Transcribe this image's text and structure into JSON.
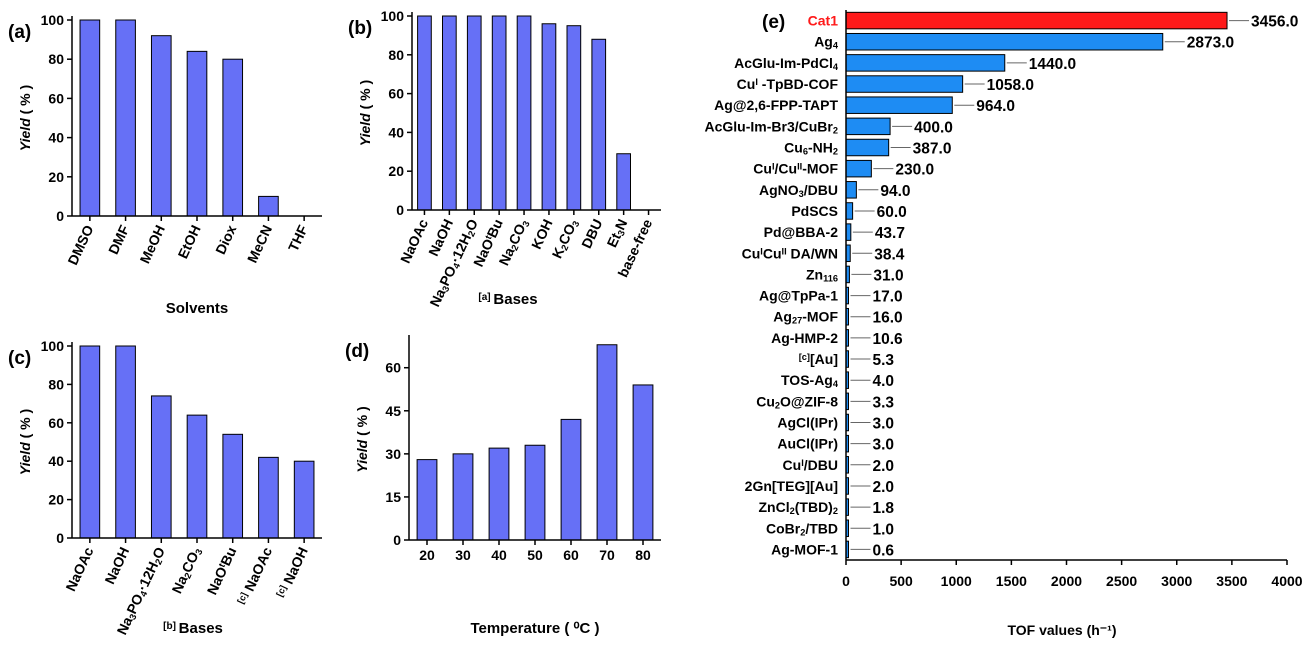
{
  "colors": {
    "bar": "#6670F6",
    "bar_e": "#1E8CF3",
    "highlight": "#FF1A1A",
    "axis": "#000000"
  },
  "chart_data": [
    {
      "id": "a",
      "panel_label": "(a)",
      "type": "bar",
      "xlabel": "Solvents",
      "ylabel": "Yield ( % )",
      "categories": [
        "DMSO",
        "DMF",
        "MeOH",
        "EtOH",
        "Diox",
        "MeCN",
        "THF"
      ],
      "values": [
        100,
        100,
        92,
        84,
        80,
        10,
        0
      ],
      "ylim": [
        0,
        100
      ],
      "yticks": [
        0,
        20,
        40,
        60,
        80,
        100
      ]
    },
    {
      "id": "b",
      "panel_label": "(b)",
      "type": "bar",
      "xlabel": "Bases",
      "xlabel_prefix": "[a]",
      "ylabel": "Yield ( % )",
      "categories": [
        "NaOAc",
        "NaOH",
        "Na3PO4·12H2O",
        "NaOtBu",
        "Na2CO3",
        "KOH",
        "K2CO3",
        "DBU",
        "Et3N",
        "base-free"
      ],
      "values": [
        100,
        100,
        100,
        100,
        100,
        96,
        95,
        88,
        29,
        0
      ],
      "ylim": [
        0,
        100
      ],
      "yticks": [
        0,
        20,
        40,
        60,
        80,
        100
      ]
    },
    {
      "id": "c",
      "panel_label": "(c)",
      "type": "bar",
      "xlabel": "Bases",
      "xlabel_prefix": "[b]",
      "ylabel": "Yield ( % )",
      "categories": [
        "NaOAc",
        "NaOH",
        "Na3PO4·12H2O",
        "Na2CO3",
        "NaOtBu",
        "[c] NaOAc",
        "[c] NaOH"
      ],
      "values": [
        100,
        100,
        74,
        64,
        54,
        42,
        40
      ],
      "ylim": [
        0,
        100
      ],
      "yticks": [
        0,
        20,
        40,
        60,
        80,
        100
      ]
    },
    {
      "id": "d",
      "panel_label": "(d)",
      "type": "bar",
      "xlabel": "Temperature ( ⁰C )",
      "ylabel": "Yield ( % )",
      "categories": [
        "20",
        "30",
        "40",
        "50",
        "60",
        "70",
        "80"
      ],
      "values": [
        28,
        30,
        32,
        33,
        42,
        68,
        54
      ],
      "ylim": [
        0,
        70
      ],
      "yticks": [
        0,
        15,
        30,
        45,
        60
      ]
    },
    {
      "id": "e",
      "panel_label": "(e)",
      "type": "bar",
      "orientation": "horizontal",
      "xlabel": "TOF values (h⁻¹)",
      "categories": [
        "Cat1",
        "Ag4",
        "AcGlu-Im-PdCl4",
        "CuI -TpBD-COF",
        "Ag@2,6-FPP-TAPT",
        "AcGlu-Im-Br3/CuBr2",
        "Cu6-NH2",
        "CuI/CuII-MOF",
        "AgNO3/DBU",
        "PdSCS",
        "Pd@BBA-2",
        "CuICuII DA/WN",
        "Zn116",
        "Ag@TpPa-1",
        "Ag27-MOF",
        "Ag-HMP-2",
        "[c][Au]",
        "TOS-Ag4",
        "Cu2O@ZIF-8",
        "AgCl(IPr)",
        "AuCl(IPr)",
        "CuI/DBU",
        "2Gn[TEG][Au]",
        "ZnCl2(TBD)2",
        "CoBr2/TBD",
        "Ag-MOF-1"
      ],
      "values": [
        3456.0,
        2873.0,
        1440.0,
        1058.0,
        964.0,
        400.0,
        387.0,
        230.0,
        94.0,
        60.0,
        43.7,
        38.4,
        31.0,
        17.0,
        16.0,
        10.6,
        5.3,
        4.0,
        3.3,
        3.0,
        3.0,
        2.0,
        2.0,
        1.8,
        1.0,
        0.6
      ],
      "value_labels": [
        "3456.0",
        "2873.0",
        "1440.0",
        "1058.0",
        "964.0",
        "400.0",
        "387.0",
        "230.0",
        "94.0",
        "60.0",
        "43.7",
        "38.4",
        "31.0",
        "17.0",
        "16.0",
        "10.6",
        "5.3",
        "4.0",
        "3.3",
        "3.0",
        "3.0",
        "2.0",
        "2.0",
        "1.8",
        "1.0",
        "0.6"
      ],
      "highlight": "Cat1",
      "xlim": [
        0,
        4000
      ],
      "xticks": [
        0,
        500,
        1000,
        1500,
        2000,
        2500,
        3000,
        3500,
        4000
      ]
    }
  ]
}
